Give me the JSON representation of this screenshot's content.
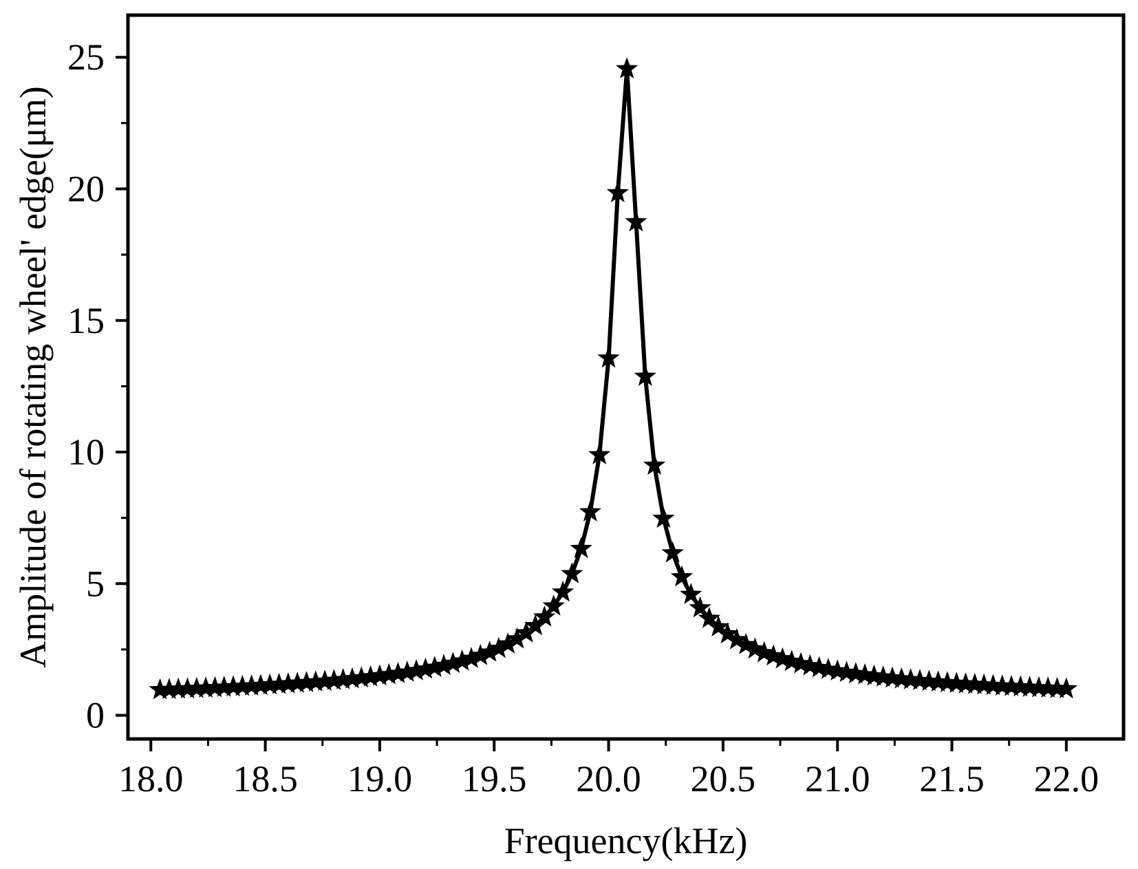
{
  "chart_data": {
    "type": "line",
    "title": "",
    "xlabel": "Frequency(kHz)",
    "ylabel": "Amplitude of rotating wheel' edge(μm)",
    "xlim": [
      17.9,
      22.25
    ],
    "ylim": [
      -0.9,
      26.6
    ],
    "xticks": [
      "18.0",
      "18.5",
      "19.0",
      "19.5",
      "20.0",
      "20.5",
      "21.0",
      "21.5",
      "22.0"
    ],
    "yticks": [
      "0",
      "5",
      "10",
      "15",
      "20",
      "25"
    ],
    "grid": false,
    "legend": "none",
    "marker": "star",
    "line_style": "solid",
    "colors": {
      "line": "#000000",
      "marker": "#000000",
      "axes": "#000000"
    },
    "resonance": {
      "f0_khz": 20.077,
      "peak_um": 24.6,
      "offset_um": 0.37,
      "half_width_khz": 0.05
    },
    "series": [
      {
        "x_start_khz": 18.04,
        "x_end_khz": 22.0,
        "x_step_khz": 0.04
      }
    ]
  }
}
